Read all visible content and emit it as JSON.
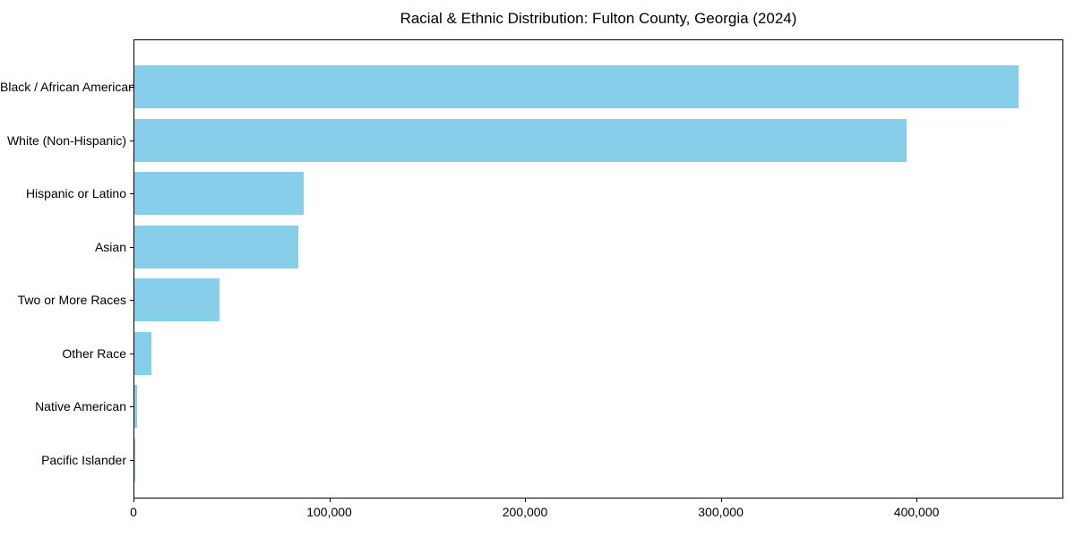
{
  "chart_data": {
    "type": "bar",
    "orientation": "horizontal",
    "title": "Racial & Ethnic Distribution: Fulton County, Georgia (2024)",
    "categories": [
      "Black / African American",
      "White (Non-Hispanic)",
      "Hispanic or Latino",
      "Asian",
      "Two or More Races",
      "Other Race",
      "Native American",
      "Pacific Islander"
    ],
    "values": [
      452000,
      395000,
      87000,
      84000,
      44000,
      9000,
      2000,
      500
    ],
    "xlabel": "",
    "ylabel": "",
    "x_ticks": [
      0,
      100000,
      200000,
      300000,
      400000
    ],
    "x_tick_labels": [
      "0",
      "100,000",
      "200,000",
      "300,000",
      "400,000"
    ],
    "xlim": [
      0,
      475000
    ],
    "grid": false,
    "legend": null,
    "bar_color": "#87CEEB",
    "background_color": "#ffffff",
    "spine_color": "#000000"
  }
}
